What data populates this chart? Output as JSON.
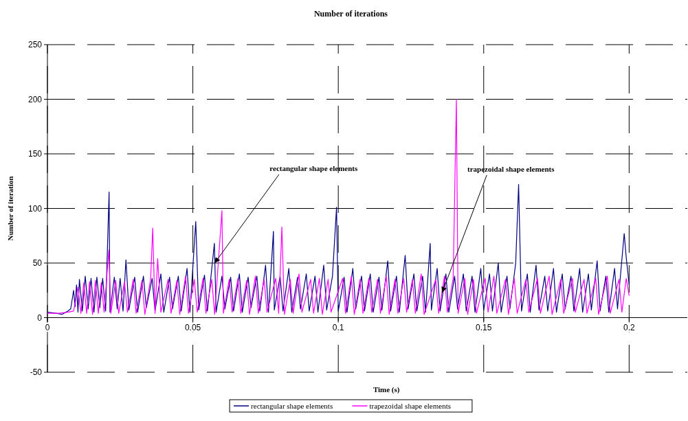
{
  "chart_data": {
    "type": "line",
    "title": "Number of iterations",
    "xlabel": "Time (s)",
    "ylabel": "Number of iteration",
    "xlim": [
      0,
      0.22
    ],
    "xticks": [
      0,
      0.05,
      0.1,
      0.15,
      0.2
    ],
    "ylim": [
      -50,
      250
    ],
    "yticks": [
      -50,
      0,
      50,
      100,
      150,
      200,
      250
    ],
    "grid": true,
    "legend": "bottom",
    "annotations": [
      {
        "text": "rectangular shape elements",
        "x": 0.0575,
        "y": 50
      },
      {
        "text": "trapezoidal shape elements",
        "x": 0.1357,
        "y": 23
      }
    ],
    "series": [
      {
        "name": "rectangular shape elements",
        "color": "#000080",
        "x": [
          0,
          0.003,
          0.005,
          0.007,
          0.008,
          0.009,
          0.0095,
          0.01,
          0.0105,
          0.011,
          0.012,
          0.013,
          0.014,
          0.015,
          0.016,
          0.017,
          0.018,
          0.019,
          0.02,
          0.0212,
          0.0215,
          0.023,
          0.024,
          0.025,
          0.026,
          0.027,
          0.028,
          0.03,
          0.031,
          0.033,
          0.034,
          0.036,
          0.037,
          0.039,
          0.04,
          0.042,
          0.043,
          0.045,
          0.046,
          0.048,
          0.049,
          0.051,
          0.052,
          0.054,
          0.055,
          0.0574,
          0.058,
          0.06,
          0.061,
          0.063,
          0.064,
          0.066,
          0.067,
          0.069,
          0.07,
          0.072,
          0.073,
          0.075,
          0.076,
          0.0777,
          0.078,
          0.08,
          0.081,
          0.083,
          0.084,
          0.086,
          0.087,
          0.089,
          0.09,
          0.092,
          0.093,
          0.095,
          0.096,
          0.098,
          0.0994,
          0.1,
          0.102,
          0.103,
          0.105,
          0.106,
          0.108,
          0.109,
          0.111,
          0.112,
          0.114,
          0.115,
          0.117,
          0.118,
          0.12,
          0.121,
          0.123,
          0.124,
          0.126,
          0.127,
          0.129,
          0.13,
          0.1316,
          0.132,
          0.134,
          0.135,
          0.137,
          0.138,
          0.14,
          0.141,
          0.143,
          0.144,
          0.146,
          0.147,
          0.149,
          0.15,
          0.152,
          0.153,
          0.155,
          0.156,
          0.158,
          0.159,
          0.161,
          0.162,
          0.163,
          0.165,
          0.166,
          0.168,
          0.169,
          0.171,
          0.172,
          0.174,
          0.175,
          0.177,
          0.178,
          0.18,
          0.181,
          0.183,
          0.184,
          0.186,
          0.187,
          0.189,
          0.19,
          0.192,
          0.193,
          0.195,
          0.196,
          0.1983,
          0.199,
          0.2
        ],
        "values": [
          5,
          4,
          3,
          6,
          8,
          25,
          10,
          30,
          5,
          35,
          6,
          38,
          8,
          36,
          5,
          37,
          9,
          36,
          6,
          115,
          5,
          37,
          8,
          36,
          6,
          53,
          7,
          37,
          5,
          38,
          9,
          36,
          6,
          40,
          5,
          37,
          8,
          38,
          6,
          45,
          5,
          88,
          7,
          39,
          6,
          68,
          5,
          38,
          8,
          37,
          6,
          40,
          5,
          37,
          9,
          38,
          6,
          48,
          5,
          79,
          7,
          38,
          6,
          45,
          5,
          37,
          8,
          40,
          6,
          38,
          5,
          48,
          7,
          38,
          101,
          6,
          37,
          5,
          45,
          8,
          38,
          6,
          40,
          5,
          37,
          7,
          52,
          6,
          38,
          5,
          57,
          8,
          40,
          6,
          38,
          5,
          68,
          7,
          45,
          6,
          40,
          5,
          38,
          8,
          40,
          6,
          38,
          5,
          45,
          7,
          40,
          6,
          50,
          5,
          38,
          8,
          50,
          122,
          6,
          40,
          5,
          48,
          7,
          38,
          6,
          45,
          5,
          40,
          8,
          38,
          6,
          45,
          5,
          40,
          7,
          52,
          6,
          38,
          5,
          45,
          8,
          77,
          55,
          30
        ]
      },
      {
        "name": "trapezoidal shape elements",
        "color": "#ff00ff",
        "x": [
          0,
          0.004,
          0.007,
          0.009,
          0.0105,
          0.0115,
          0.0125,
          0.0135,
          0.0145,
          0.0155,
          0.0165,
          0.0175,
          0.0185,
          0.0195,
          0.0211,
          0.0218,
          0.0235,
          0.0245,
          0.0265,
          0.0275,
          0.0295,
          0.0305,
          0.0325,
          0.0335,
          0.0355,
          0.0362,
          0.037,
          0.0379,
          0.039,
          0.0415,
          0.0425,
          0.0445,
          0.0455,
          0.0475,
          0.0485,
          0.0505,
          0.0515,
          0.0535,
          0.0545,
          0.0565,
          0.0575,
          0.06,
          0.0605,
          0.0625,
          0.0635,
          0.0655,
          0.0665,
          0.0685,
          0.0695,
          0.0715,
          0.0725,
          0.0745,
          0.0755,
          0.0785,
          0.0795,
          0.0806,
          0.0815,
          0.0835,
          0.0845,
          0.0865,
          0.0875,
          0.0905,
          0.0915,
          0.0935,
          0.0945,
          0.0965,
          0.0975,
          0.1015,
          0.1025,
          0.1045,
          0.1055,
          0.1075,
          0.1085,
          0.1105,
          0.1115,
          0.1135,
          0.1145,
          0.1165,
          0.1175,
          0.1195,
          0.1205,
          0.1225,
          0.1235,
          0.1255,
          0.1265,
          0.1285,
          0.1295,
          0.1335,
          0.1345,
          0.1365,
          0.1375,
          0.1395,
          0.1406,
          0.1412,
          0.1435,
          0.1445,
          0.1465,
          0.1475,
          0.1505,
          0.1515,
          0.1535,
          0.1545,
          0.1575,
          0.1585,
          0.1605,
          0.1615,
          0.1645,
          0.1655,
          0.1685,
          0.1695,
          0.1725,
          0.1735,
          0.1765,
          0.1775,
          0.1805,
          0.1815,
          0.1845,
          0.1855,
          0.1885,
          0.1895,
          0.1925,
          0.1935,
          0.1965,
          0.1975,
          0.199,
          0.2
        ],
        "values": [
          4,
          4,
          5,
          6,
          28,
          4,
          32,
          4,
          33,
          3,
          34,
          4,
          32,
          5,
          62,
          4,
          34,
          4,
          33,
          5,
          35,
          4,
          34,
          3,
          36,
          82,
          4,
          54,
          5,
          35,
          4,
          34,
          3,
          38,
          4,
          35,
          5,
          36,
          4,
          35,
          3,
          98,
          4,
          35,
          5,
          36,
          4,
          34,
          3,
          38,
          4,
          35,
          5,
          36,
          4,
          83,
          3,
          35,
          4,
          40,
          5,
          35,
          4,
          36,
          3,
          35,
          5,
          36,
          4,
          38,
          3,
          35,
          4,
          36,
          5,
          35,
          4,
          38,
          3,
          35,
          4,
          36,
          5,
          35,
          4,
          40,
          3,
          35,
          4,
          38,
          5,
          36,
          200,
          4,
          36,
          3,
          35,
          4,
          36,
          5,
          38,
          4,
          35,
          3,
          36,
          4,
          35,
          5,
          36,
          4,
          38,
          3,
          35,
          4,
          36,
          5,
          35,
          4,
          36,
          3,
          38,
          4,
          35,
          5,
          36,
          20
        ]
      }
    ]
  }
}
